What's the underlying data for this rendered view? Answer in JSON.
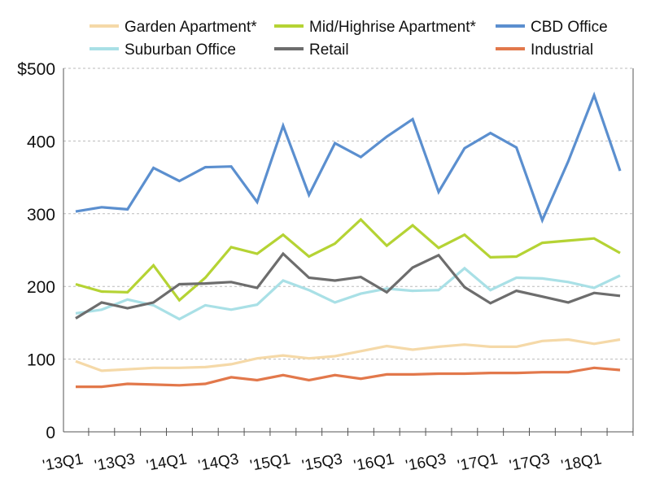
{
  "chart_data": {
    "type": "line",
    "title": "",
    "xlabel": "",
    "ylabel": "",
    "ylim": [
      0,
      500
    ],
    "yticks": [
      "0",
      "100",
      "200",
      "300",
      "400",
      "$500"
    ],
    "ytick_values": [
      0,
      100,
      200,
      300,
      400,
      500
    ],
    "grid": "horizontal dashed",
    "legend_position": "top",
    "categories": [
      "'13Q1",
      "'13Q2",
      "'13Q3",
      "'13Q4",
      "'14Q1",
      "'14Q2",
      "'14Q3",
      "'14Q4",
      "'15Q1",
      "'15Q2",
      "'15Q3",
      "'15Q4",
      "'16Q1",
      "'16Q2",
      "'16Q3",
      "'16Q4",
      "'17Q1",
      "'17Q2",
      "'17Q3",
      "'17Q4",
      "'18Q1",
      "'18Q2"
    ],
    "xtick_labels": [
      "'13Q1",
      "'13Q3",
      "'14Q1",
      "'14Q3",
      "'15Q1",
      "'15Q3",
      "'16Q1",
      "'16Q3",
      "'17Q1",
      "'17Q3",
      "'18Q1"
    ],
    "series": [
      {
        "name": "Garden Apartment*",
        "color": "#f5d9a8",
        "values": [
          97,
          84,
          86,
          88,
          88,
          89,
          93,
          101,
          105,
          101,
          104,
          111,
          118,
          113,
          117,
          120,
          117,
          117,
          125,
          127,
          121,
          127
        ]
      },
      {
        "name": "Mid/Highrise Apartment*",
        "color": "#b5d334",
        "values": [
          203,
          193,
          192,
          229,
          181,
          212,
          254,
          245,
          271,
          241,
          259,
          292,
          256,
          284,
          253,
          271,
          240,
          241,
          260,
          263,
          266,
          246
        ]
      },
      {
        "name": "CBD Office",
        "color": "#5b8fcf",
        "values": [
          303,
          309,
          306,
          363,
          345,
          364,
          365,
          316,
          421,
          326,
          397,
          378,
          406,
          430,
          330,
          390,
          411,
          391,
          291,
          372,
          463,
          359
        ]
      },
      {
        "name": "Suburban Office",
        "color": "#a9e0e6",
        "values": [
          163,
          168,
          182,
          174,
          155,
          174,
          168,
          175,
          208,
          195,
          178,
          190,
          197,
          194,
          195,
          225,
          195,
          212,
          211,
          206,
          198,
          215
        ]
      },
      {
        "name": "Retail",
        "color": "#6d6d6d",
        "values": [
          156,
          178,
          170,
          178,
          203,
          204,
          206,
          198,
          245,
          212,
          208,
          213,
          192,
          226,
          243,
          199,
          177,
          194,
          186,
          178,
          191,
          187
        ]
      },
      {
        "name": "Industrial",
        "color": "#e2784b",
        "values": [
          62,
          62,
          66,
          65,
          64,
          66,
          75,
          71,
          78,
          71,
          78,
          73,
          79,
          79,
          80,
          80,
          81,
          81,
          82,
          82,
          88,
          85
        ]
      }
    ]
  }
}
